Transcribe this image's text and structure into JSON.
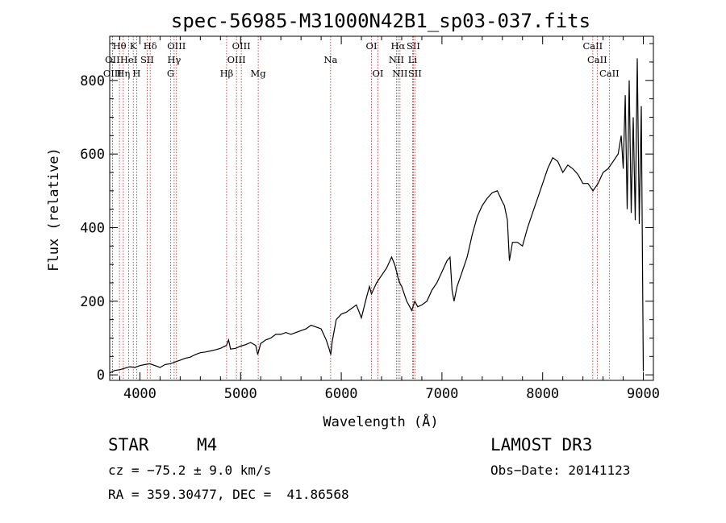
{
  "chart_data": {
    "type": "line",
    "title": "spec-56985-M31000N42B1_sp03-037.fits",
    "xlabel": "Wavelength (Å)",
    "ylabel": "Flux (relative)",
    "xlim": [
      3700,
      9100
    ],
    "ylim": [
      -15,
      920
    ],
    "x_ticks": [
      4000,
      5000,
      6000,
      7000,
      8000,
      9000
    ],
    "y_ticks": [
      0,
      200,
      400,
      600,
      800
    ],
    "grid": false,
    "series": [
      {
        "name": "flux",
        "x": [
          3700,
          3750,
          3800,
          3850,
          3900,
          3950,
          4000,
          4050,
          4100,
          4150,
          4200,
          4250,
          4300,
          4350,
          4400,
          4450,
          4500,
          4550,
          4600,
          4650,
          4700,
          4750,
          4800,
          4830,
          4860,
          4880,
          4900,
          4950,
          5000,
          5050,
          5100,
          5150,
          5170,
          5200,
          5250,
          5300,
          5350,
          5400,
          5450,
          5500,
          5550,
          5600,
          5650,
          5700,
          5750,
          5800,
          5850,
          5880,
          5895,
          5910,
          5950,
          6000,
          6050,
          6100,
          6150,
          6200,
          6250,
          6280,
          6300,
          6350,
          6400,
          6450,
          6500,
          6530,
          6550,
          6563,
          6580,
          6600,
          6650,
          6700,
          6730,
          6760,
          6800,
          6850,
          6900,
          6950,
          7000,
          7050,
          7080,
          7100,
          7120,
          7150,
          7200,
          7250,
          7300,
          7350,
          7400,
          7450,
          7500,
          7550,
          7600,
          7620,
          7650,
          7670,
          7700,
          7750,
          7800,
          7850,
          7900,
          7950,
          8000,
          8050,
          8100,
          8150,
          8200,
          8250,
          8300,
          8350,
          8400,
          8450,
          8500,
          8550,
          8600,
          8650,
          8700,
          8750,
          8780,
          8800,
          8820,
          8840,
          8860,
          8880,
          8900,
          8920,
          8940,
          8960,
          8980,
          9000
        ],
        "y": [
          5,
          12,
          14,
          18,
          22,
          20,
          25,
          28,
          30,
          25,
          20,
          28,
          30,
          35,
          40,
          45,
          48,
          55,
          60,
          62,
          65,
          68,
          72,
          76,
          80,
          95,
          70,
          72,
          78,
          82,
          88,
          80,
          55,
          85,
          95,
          100,
          110,
          110,
          115,
          110,
          115,
          120,
          125,
          135,
          130,
          125,
          95,
          70,
          55,
          90,
          150,
          165,
          170,
          180,
          190,
          155,
          210,
          240,
          220,
          250,
          270,
          290,
          320,
          300,
          280,
          265,
          250,
          240,
          200,
          175,
          200,
          185,
          190,
          200,
          230,
          250,
          280,
          310,
          320,
          230,
          200,
          240,
          280,
          320,
          380,
          430,
          460,
          480,
          495,
          500,
          470,
          460,
          420,
          310,
          360,
          360,
          350,
          400,
          440,
          480,
          520,
          560,
          590,
          580,
          550,
          570,
          560,
          545,
          520,
          520,
          500,
          520,
          550,
          560,
          580,
          600,
          650,
          560,
          760,
          450,
          800,
          440,
          700,
          420,
          860,
          410,
          730,
          10
        ]
      }
    ],
    "spectral_lines": [
      {
        "label": "Hθ",
        "x": 3797,
        "row": 0
      },
      {
        "label": "OII",
        "x": 3727,
        "row": 1
      },
      {
        "label": "OIII",
        "x": 3727,
        "row": 2
      },
      {
        "label": "K",
        "x": 3934,
        "row": 0
      },
      {
        "label": "HeI",
        "x": 3889,
        "row": 1
      },
      {
        "label": "Hη",
        "x": 3835,
        "row": 2
      },
      {
        "label": "H",
        "x": 3968,
        "row": 2
      },
      {
        "label": "SII",
        "x": 4072,
        "row": 1
      },
      {
        "label": "Hδ",
        "x": 4102,
        "row": 0
      },
      {
        "label": "OIII",
        "x": 4363,
        "row": 0
      },
      {
        "label": "Hγ",
        "x": 4340,
        "row": 1
      },
      {
        "label": "G",
        "x": 4305,
        "row": 2
      },
      {
        "label": "OIII",
        "x": 5007,
        "row": 0
      },
      {
        "label": "OIII",
        "x": 4959,
        "row": 1
      },
      {
        "label": "Hβ",
        "x": 4861,
        "row": 2
      },
      {
        "label": "Mg",
        "x": 5175,
        "row": 2
      },
      {
        "label": "Na",
        "x": 5894,
        "row": 1
      },
      {
        "label": "OI",
        "x": 6300,
        "row": 0
      },
      {
        "label": "OI",
        "x": 6364,
        "row": 2
      },
      {
        "label": "Hα",
        "x": 6563,
        "row": 0
      },
      {
        "label": "SII",
        "x": 6716,
        "row": 0
      },
      {
        "label": "NII",
        "x": 6548,
        "row": 1
      },
      {
        "label": "Li",
        "x": 6708,
        "row": 1
      },
      {
        "label": "NII",
        "x": 6583,
        "row": 2
      },
      {
        "label": "SII",
        "x": 6731,
        "row": 2
      },
      {
        "label": "CaII",
        "x": 8498,
        "row": 0
      },
      {
        "label": "CaII",
        "x": 8542,
        "row": 1
      },
      {
        "label": "CaII",
        "x": 8662,
        "row": 2
      }
    ],
    "spectral_line_color": "#b22222",
    "series_color": "#000000"
  },
  "info": {
    "class": "STAR",
    "subclass": "M4",
    "survey": "LAMOST DR3",
    "cz": "cz = −75.2 ± 9.0 km/s",
    "obs_date": "Obs−Date: 20141123",
    "coords": "RA = 359.30477, DEC =  41.86568"
  }
}
